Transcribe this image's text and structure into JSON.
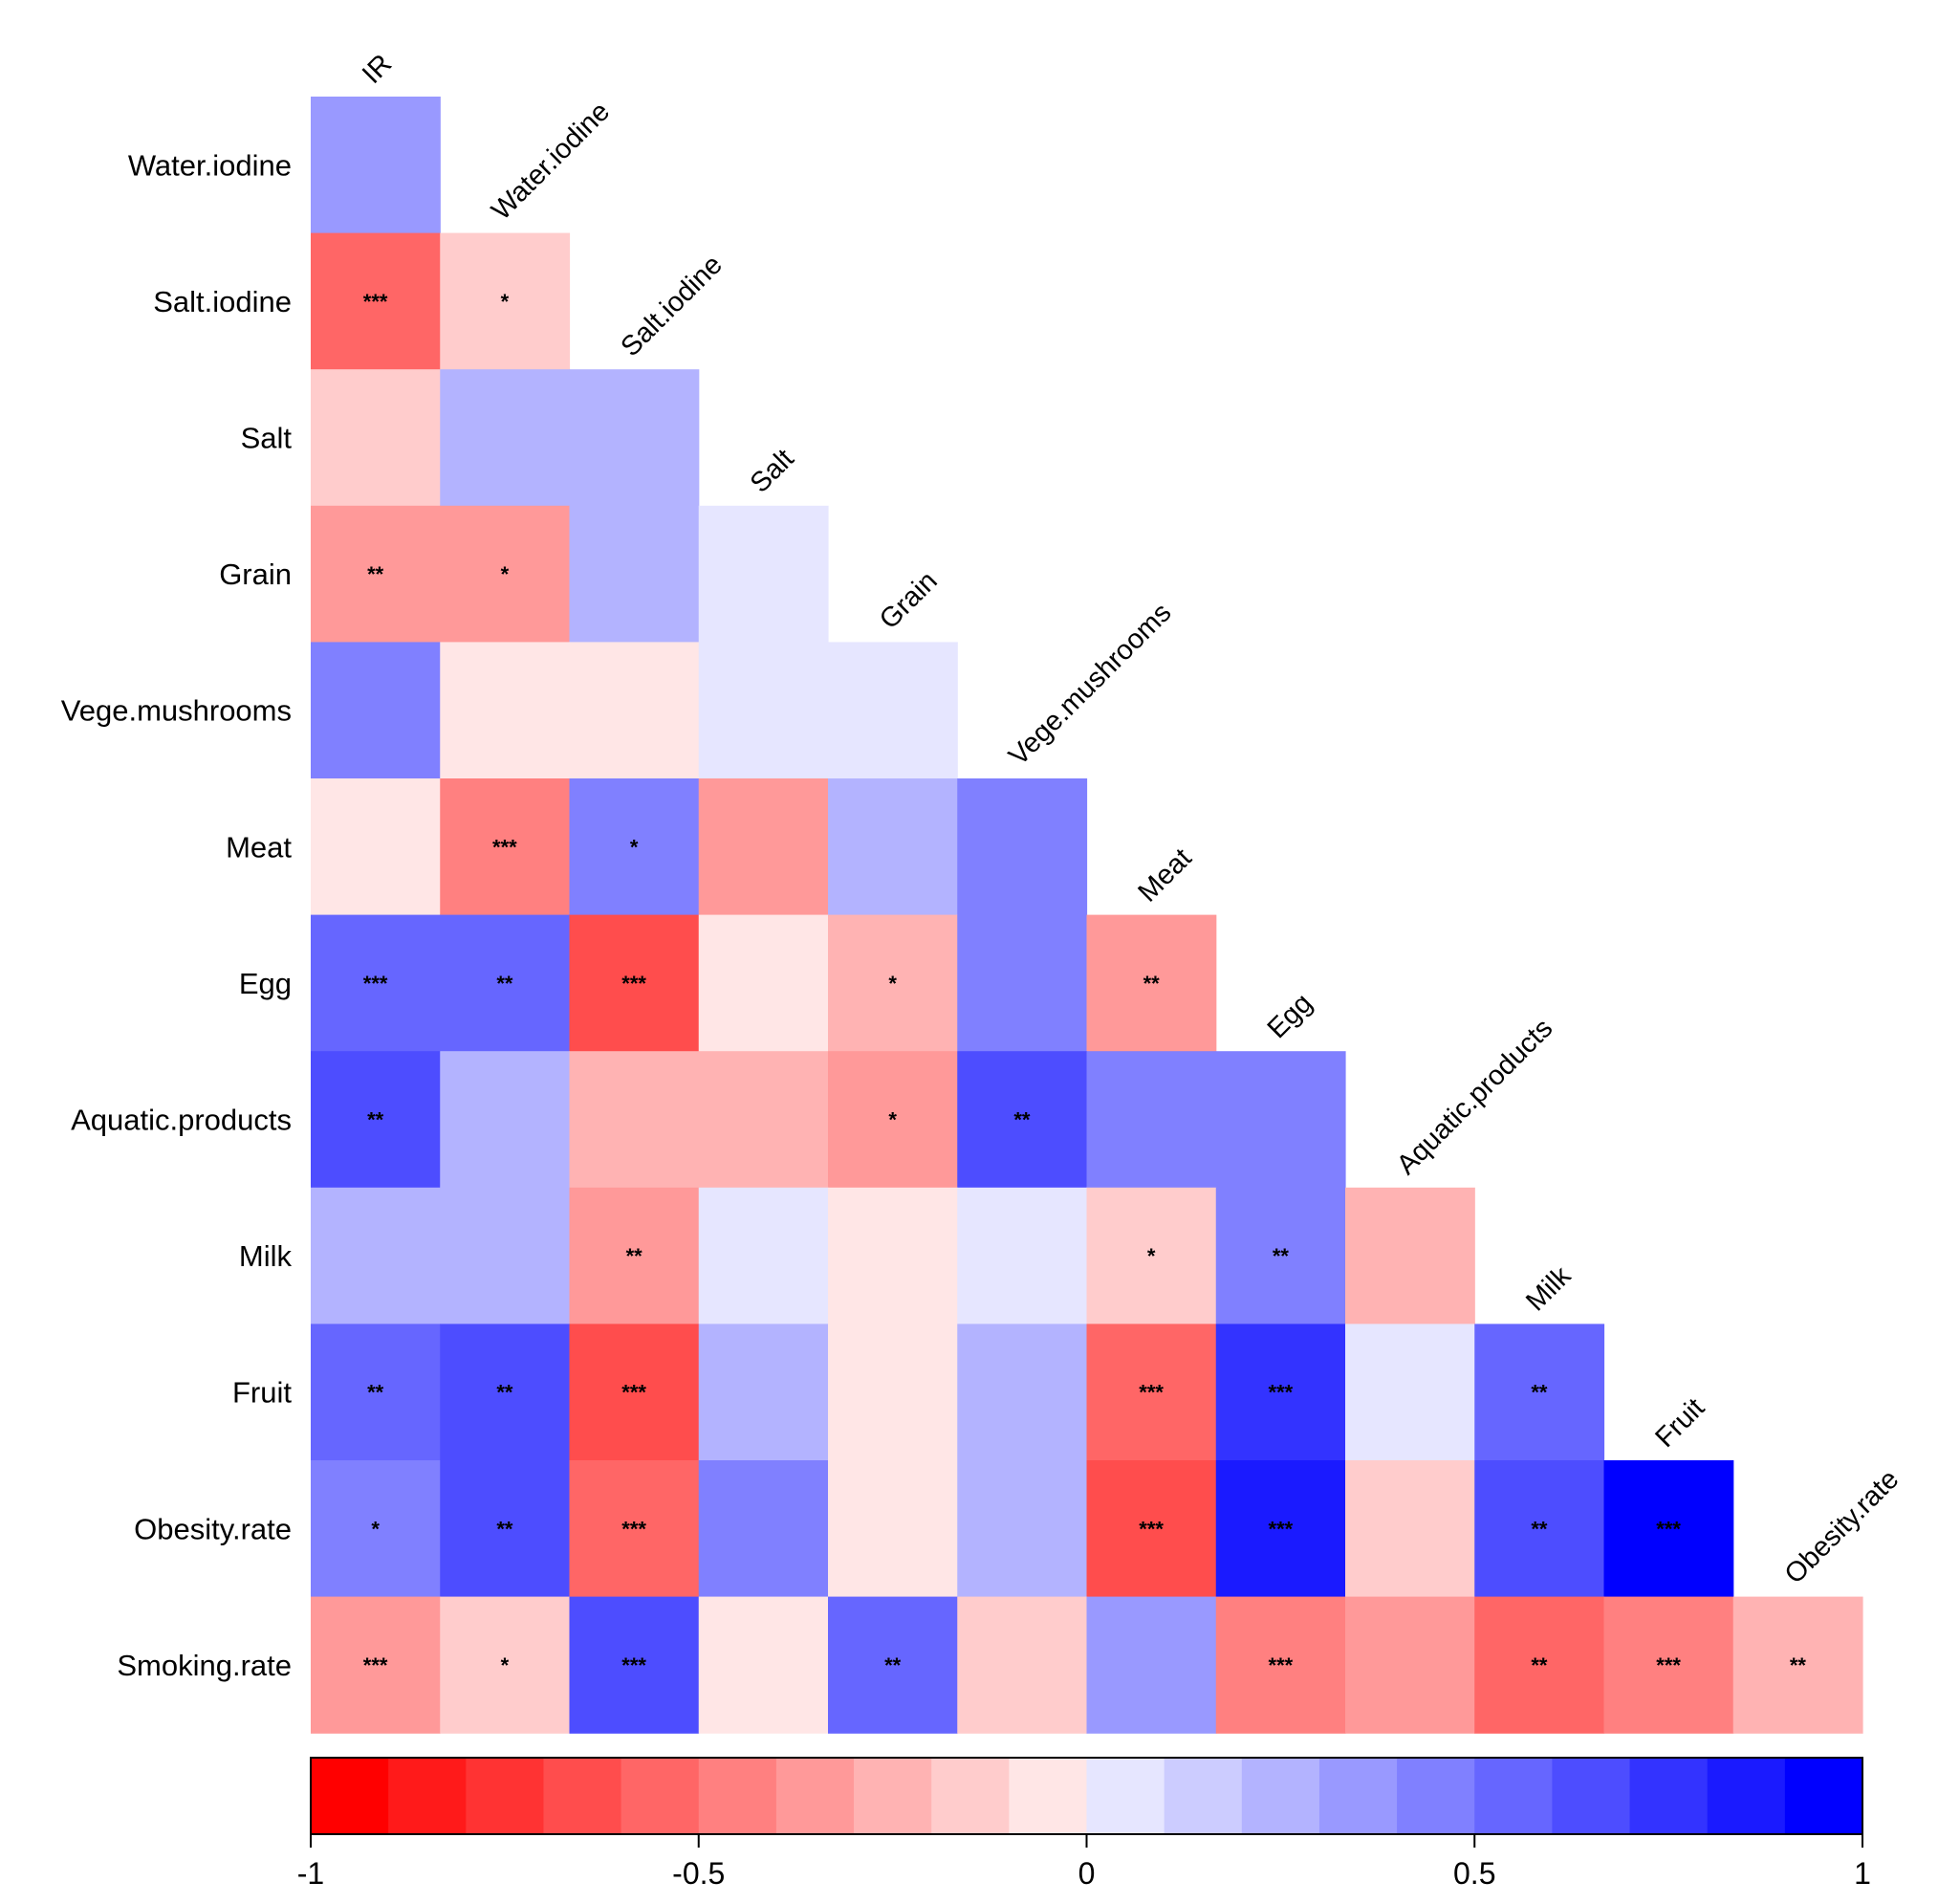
{
  "chart_data": {
    "type": "heatmap",
    "layout": "lower-triangle correlation matrix",
    "columns": [
      "IR",
      "Water.iodine",
      "Salt.iodine",
      "Salt",
      "Grain",
      "Vege.mushrooms",
      "Meat",
      "Egg",
      "Aquatic.products",
      "Milk",
      "Fruit",
      "Obesity.rate"
    ],
    "rows": [
      "Water.iodine",
      "Salt.iodine",
      "Salt",
      "Grain",
      "Vege.mushrooms",
      "Meat",
      "Egg",
      "Aquatic.products",
      "Milk",
      "Fruit",
      "Obesity.rate",
      "Smoking.rate"
    ],
    "values": [
      [
        0.35
      ],
      [
        -0.55,
        -0.15
      ],
      [
        -0.15,
        0.2,
        0.2
      ],
      [
        -0.4,
        -0.4,
        0.2,
        0.05
      ],
      [
        0.4,
        -0.05,
        -0.05,
        0.05,
        0.05
      ],
      [
        -0.05,
        -0.5,
        0.4,
        -0.4,
        0.2,
        0.4
      ],
      [
        0.5,
        0.5,
        -0.65,
        -0.05,
        -0.25,
        0.4,
        -0.4
      ],
      [
        0.6,
        0.2,
        -0.25,
        -0.25,
        -0.4,
        0.6,
        0.4,
        0.4
      ],
      [
        0.2,
        0.2,
        -0.4,
        0.05,
        -0.05,
        0.05,
        -0.15,
        0.4,
        -0.25
      ],
      [
        0.5,
        0.6,
        -0.65,
        0.2,
        -0.05,
        0.2,
        -0.55,
        0.7,
        0.05,
        0.5
      ],
      [
        0.45,
        0.6,
        -0.6,
        0.4,
        -0.05,
        0.2,
        -0.65,
        0.8,
        -0.15,
        0.6,
        0.9
      ],
      [
        -0.4,
        -0.15,
        0.6,
        -0.05,
        0.5,
        -0.15,
        0.3,
        -0.5,
        -0.4,
        -0.55,
        -0.5,
        -0.3
      ]
    ],
    "significance": [
      [
        ""
      ],
      [
        "***",
        "*"
      ],
      [
        "",
        "",
        ""
      ],
      [
        "**",
        "*",
        "",
        ""
      ],
      [
        "",
        "",
        "",
        "",
        ""
      ],
      [
        "",
        "***",
        "*",
        "",
        "",
        ""
      ],
      [
        "***",
        "**",
        "***",
        "",
        "*",
        "",
        "**"
      ],
      [
        "**",
        "",
        "",
        "",
        "*",
        "**",
        "",
        ""
      ],
      [
        "",
        "",
        "**",
        "",
        "",
        "",
        "*",
        "**",
        ""
      ],
      [
        "**",
        "**",
        "***",
        "",
        "",
        "",
        "***",
        "***",
        "",
        "**"
      ],
      [
        "*",
        "**",
        "***",
        "",
        "",
        "",
        "***",
        "***",
        "",
        "**",
        "***"
      ],
      [
        "***",
        "*",
        "***",
        "",
        "**",
        "",
        "",
        "***",
        "",
        "**",
        "***",
        "**"
      ]
    ],
    "colorbar": {
      "range": [
        -1,
        1
      ],
      "ticks": [
        "-1",
        "-0.5",
        "0",
        "0.5",
        "1"
      ],
      "tick_values": [
        -1,
        -0.5,
        0,
        0.5,
        1
      ],
      "bins": 20,
      "low_color": "#ff0000",
      "mid_color": "#ffffff",
      "high_color": "#0000ff"
    }
  }
}
